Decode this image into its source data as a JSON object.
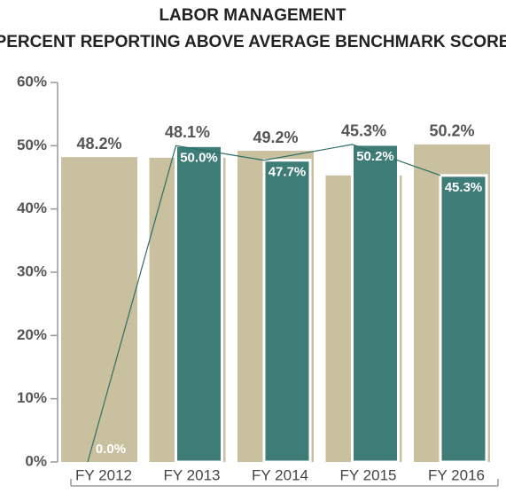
{
  "chart_data": {
    "type": "bar",
    "title": "LABOR MANAGEMENT",
    "subtitle": "PERCENT REPORTING ABOVE AVERAGE BENCHMARK SCORE",
    "categories": [
      "FY 2012",
      "FY 2013",
      "FY 2014",
      "FY 2015",
      "FY 2016"
    ],
    "series": [
      {
        "color": "#c8c09e",
        "values": [
          48.2,
          48.1,
          49.2,
          45.3,
          50.2
        ],
        "value_labels": [
          "48.2%",
          "48.1%",
          "49.2%",
          "45.3%",
          "50.2%"
        ]
      },
      {
        "color": "#3e7c77",
        "values": [
          0.0,
          50.0,
          47.7,
          50.2,
          45.3
        ],
        "value_labels": [
          "0.0%",
          "50.0%",
          "47.7%",
          "50.2%",
          "45.3%"
        ]
      }
    ],
    "ylim": [
      0,
      60
    ],
    "yticks": [
      {
        "value": 0,
        "label": "0%"
      },
      {
        "value": 10,
        "label": "10%"
      },
      {
        "value": 20,
        "label": "20%"
      },
      {
        "value": 30,
        "label": "30%"
      },
      {
        "value": 40,
        "label": "40%"
      },
      {
        "value": 50,
        "label": "50%"
      },
      {
        "value": 60,
        "label": "60%"
      }
    ]
  }
}
